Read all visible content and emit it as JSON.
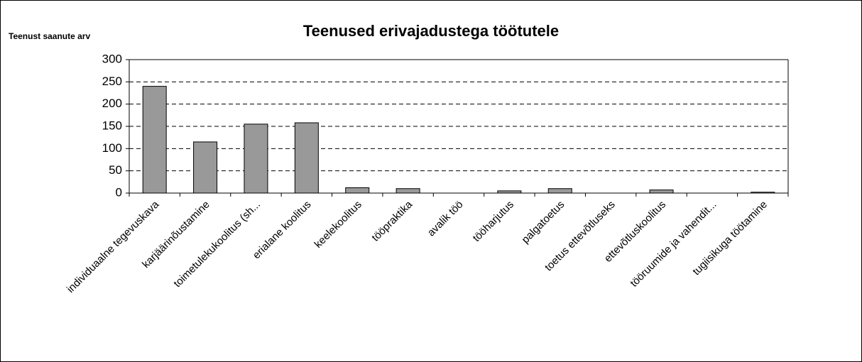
{
  "chart_data": {
    "type": "bar",
    "title": "Teenused erivajadustega töötutele",
    "y_label": "Teenust saanute arv",
    "categories": [
      "individuaalne tegevuskava",
      "karjäärinõustamine",
      "toimetulekukoolitus (sh...",
      "erialane koolitus",
      "keelekoolitus",
      "tööpraktika",
      "avalik töö",
      "tööharjutus",
      "palgatoetus",
      "toetus ettevõtluseks",
      "ettevõtluskoolitus",
      "tööruumide ja vahendit...",
      "tugiisikuga töötamine"
    ],
    "values": [
      240,
      115,
      155,
      158,
      12,
      10,
      0,
      5,
      10,
      0,
      7,
      0,
      2
    ],
    "color": "#999999",
    "ylim": [
      0,
      300
    ],
    "yticks": [
      0,
      50,
      100,
      150,
      200,
      250,
      300
    ],
    "grid": true
  }
}
